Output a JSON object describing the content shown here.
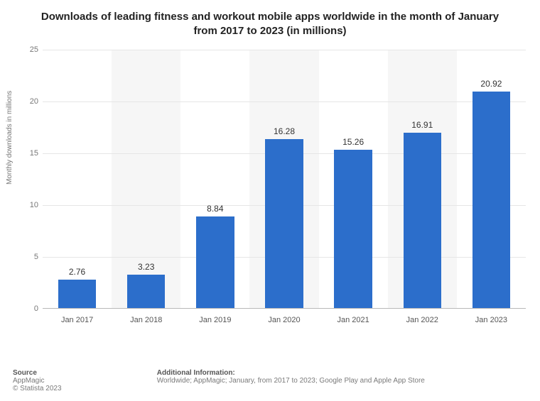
{
  "title": "Downloads of leading fitness and workout mobile apps worldwide in the month of January from 2017 to 2023 (in millions)",
  "title_fontsize": 15,
  "ylabel": "Monthly downloads in millions",
  "ylabel_fontsize": 10,
  "chart": {
    "type": "bar",
    "categories": [
      "Jan 2017",
      "Jan 2018",
      "Jan 2019",
      "Jan 2020",
      "Jan 2021",
      "Jan 2022",
      "Jan 2023"
    ],
    "values": [
      2.76,
      3.23,
      8.84,
      16.28,
      15.26,
      16.91,
      20.92
    ],
    "value_labels": [
      "2.76",
      "3.23",
      "8.84",
      "16.28",
      "15.26",
      "16.91",
      "20.92"
    ],
    "bar_color": "#2c6ecb",
    "stripe_color": "#f6f6f6",
    "background_color": "#ffffff",
    "grid_color": "#e6e6e6",
    "axis_color": "#b8b8b8",
    "ylim": [
      0,
      25
    ],
    "ytick_step": 5,
    "bar_width_ratio": 0.55,
    "axis_fontsize": 11,
    "value_label_fontsize": 12,
    "value_label_color": "#333333",
    "axis_label_color": "#777777"
  },
  "footer": {
    "source_heading": "Source",
    "source_name": "AppMagic",
    "copyright": "© Statista 2023",
    "addl_heading": "Additional Information:",
    "addl_text": "Worldwide; AppMagic; January, from 2017 to 2023; Google Play and Apple App Store",
    "fontsize": 10
  }
}
